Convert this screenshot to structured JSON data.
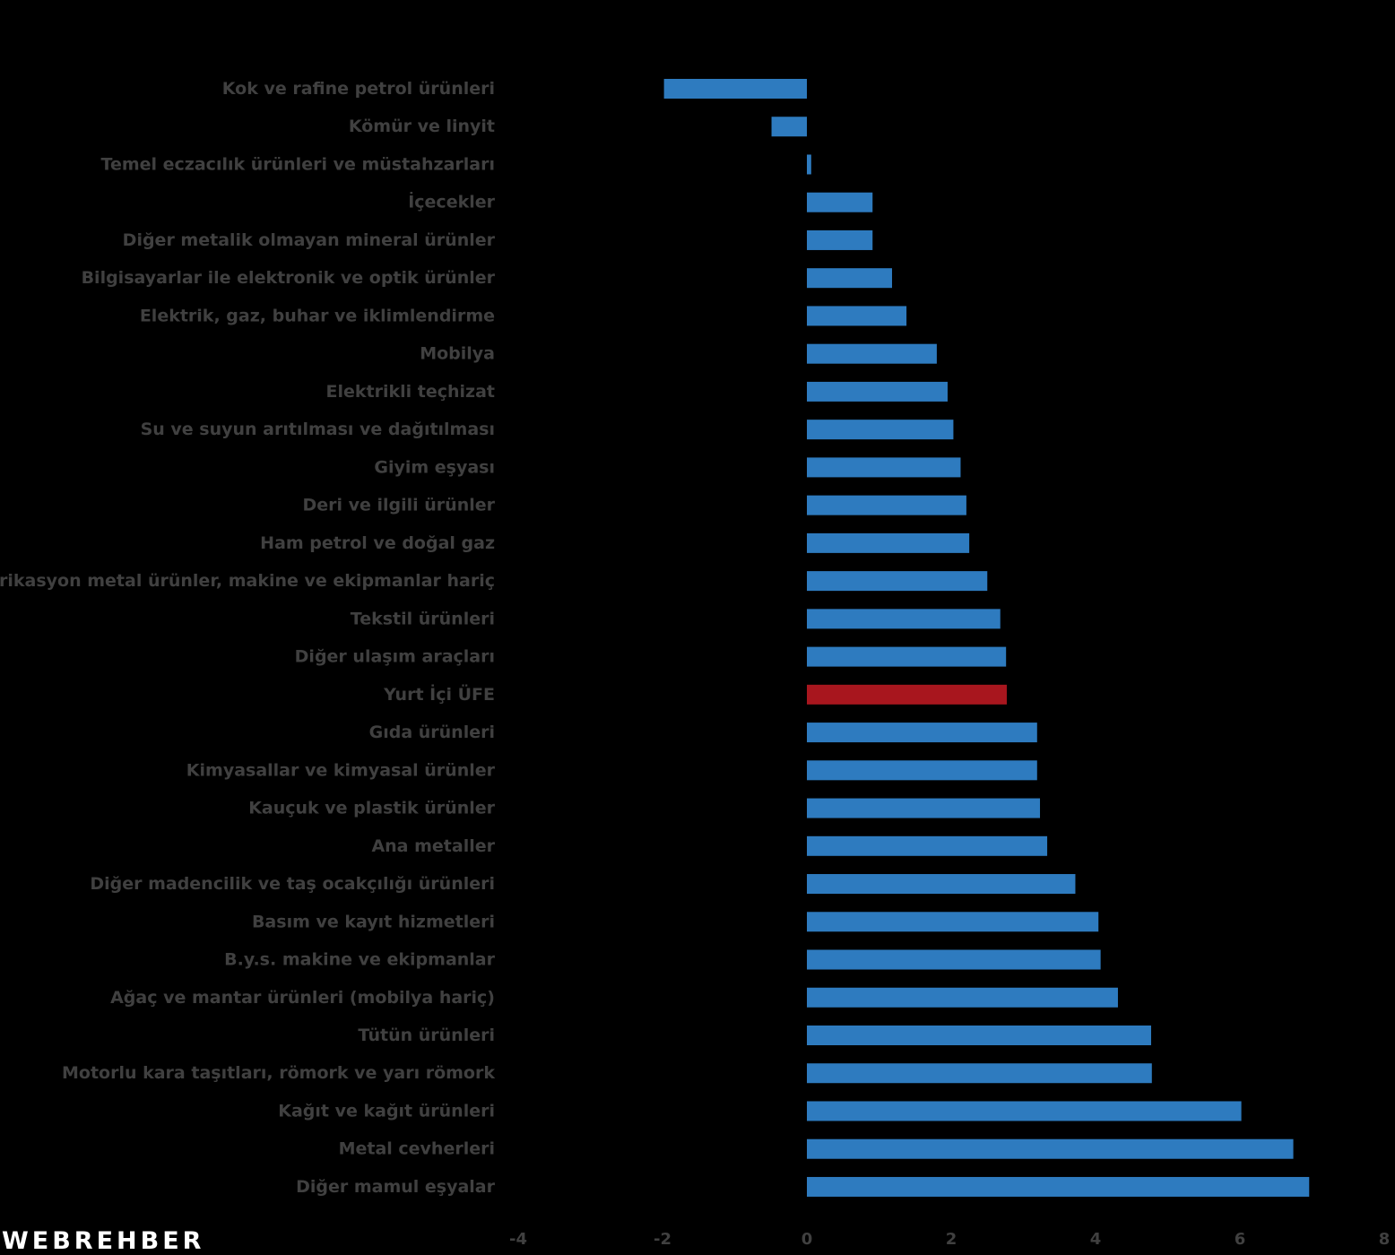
{
  "watermark": "WEBREHBER",
  "colors": {
    "bar": "#2e7bbf",
    "highlight": "#a8161e",
    "text": "#404040",
    "background": "#000000"
  },
  "chart_data": {
    "type": "bar",
    "orientation": "horizontal",
    "title": "",
    "xlabel": "",
    "ylabel": "",
    "xlim": [
      -4,
      8
    ],
    "xticks": [
      -4,
      -2,
      0,
      2,
      4,
      6,
      8
    ],
    "grid": false,
    "legend": "none",
    "highlight_category": "Yurt İçi ÜFE",
    "categories": [
      "Kok ve rafine petrol ürünleri",
      "Kömür ve linyit",
      "Temel eczacılık ürünleri ve müstahzarları",
      "İçecekler",
      "Diğer metalik olmayan mineral ürünler",
      "Bilgisayarlar ile elektronik ve optik ürünler",
      "Elektrik, gaz, buhar ve iklimlendirme",
      "Mobilya",
      "Elektrikli teçhizat",
      "Su ve suyun arıtılması ve dağıtılması",
      "Giyim eşyası",
      "Deri ve ilgili ürünler",
      "Ham petrol ve doğal gaz",
      "Fabrikasyon metal ürünler, makine ve ekipmanlar hariç",
      "Tekstil ürünleri",
      "Diğer ulaşım araçları",
      "Yurt İçi ÜFE",
      "Gıda ürünleri",
      "Kimyasallar ve kimyasal ürünler",
      "Kauçuk ve plastik ürünler",
      "Ana metaller",
      "Diğer madencilik ve taş ocakçılığı ürünleri",
      "Basım ve kayıt hizmetleri",
      "B.y.s. makine ve ekipmanlar",
      "Ağaç ve mantar ürünleri (mobilya hariç)",
      "Tütün ürünleri",
      "Motorlu kara taşıtları, römork ve yarı römork",
      "Kağıt ve kağıt ürünleri",
      "Metal cevherleri",
      "Diğer mamul eşyalar"
    ],
    "values": [
      -1.98,
      -0.49,
      0.06,
      0.91,
      0.91,
      1.18,
      1.38,
      1.8,
      1.95,
      2.03,
      2.13,
      2.21,
      2.25,
      2.5,
      2.68,
      2.76,
      2.77,
      3.19,
      3.19,
      3.23,
      3.33,
      3.72,
      4.04,
      4.07,
      4.31,
      4.77,
      4.78,
      6.02,
      6.74,
      6.96
    ]
  }
}
